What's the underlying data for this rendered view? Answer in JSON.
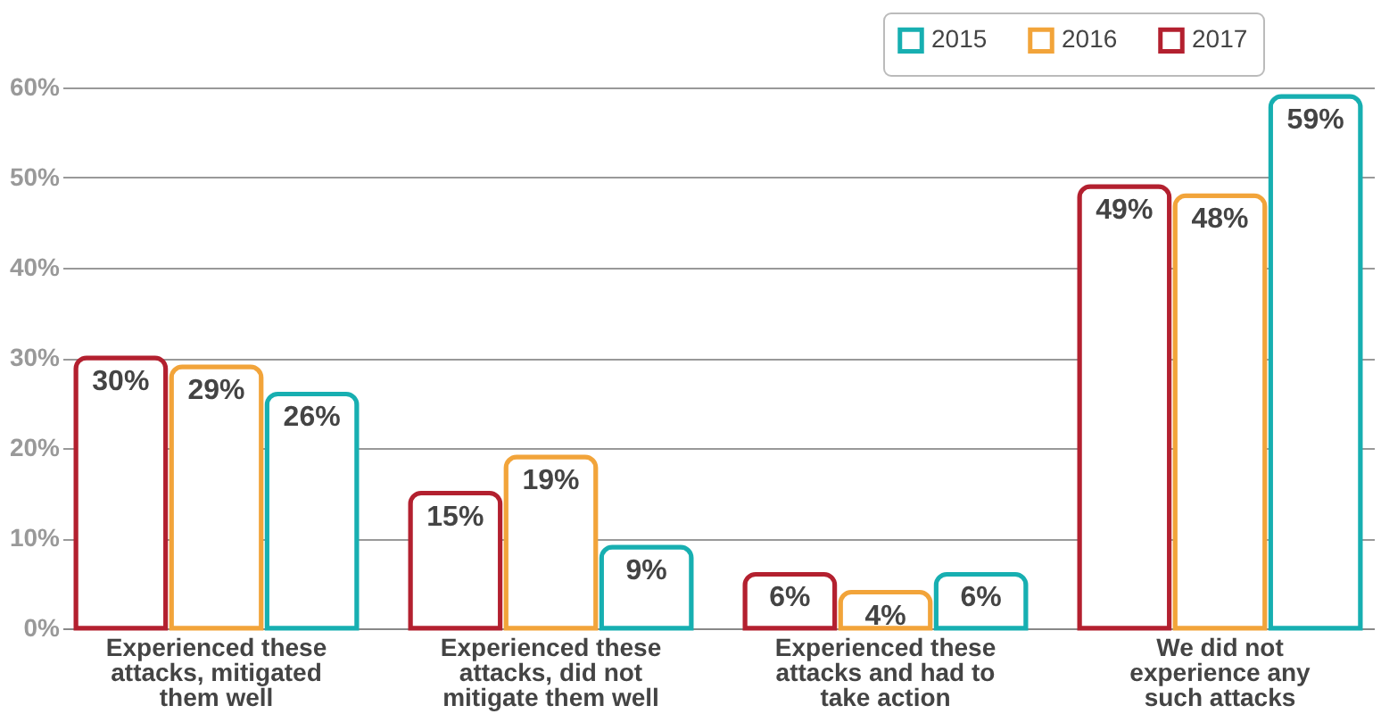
{
  "chart_data": {
    "type": "bar",
    "categories": [
      "Experienced these attacks, mitigated them well",
      "Experienced these attacks, did not mitigate them well",
      "Experienced these attacks and had to take action",
      "We did not experience any such attacks"
    ],
    "series": [
      {
        "name": "2017",
        "color": "#b3202f",
        "values": [
          30,
          15,
          6,
          49
        ],
        "value_labels": [
          "30%",
          "15%",
          "6%",
          "49%"
        ]
      },
      {
        "name": "2016",
        "color": "#f2a43a",
        "values": [
          29,
          19,
          4,
          48
        ],
        "value_labels": [
          "29%",
          "19%",
          "4%",
          "48%"
        ]
      },
      {
        "name": "2015",
        "color": "#17afb1",
        "values": [
          26,
          9,
          6,
          59
        ],
        "value_labels": [
          "26%",
          "9%",
          "6%",
          "59%"
        ]
      }
    ],
    "ylim": [
      0,
      60
    ],
    "yticks": [
      {
        "value": 0,
        "label": "0%"
      },
      {
        "value": 10,
        "label": "10%"
      },
      {
        "value": 20,
        "label": "20%"
      },
      {
        "value": 30,
        "label": "30%"
      },
      {
        "value": 40,
        "label": "40%"
      },
      {
        "value": 50,
        "label": "50%"
      },
      {
        "value": 60,
        "label": "60%"
      }
    ],
    "grid": "y",
    "legend": "top right"
  }
}
